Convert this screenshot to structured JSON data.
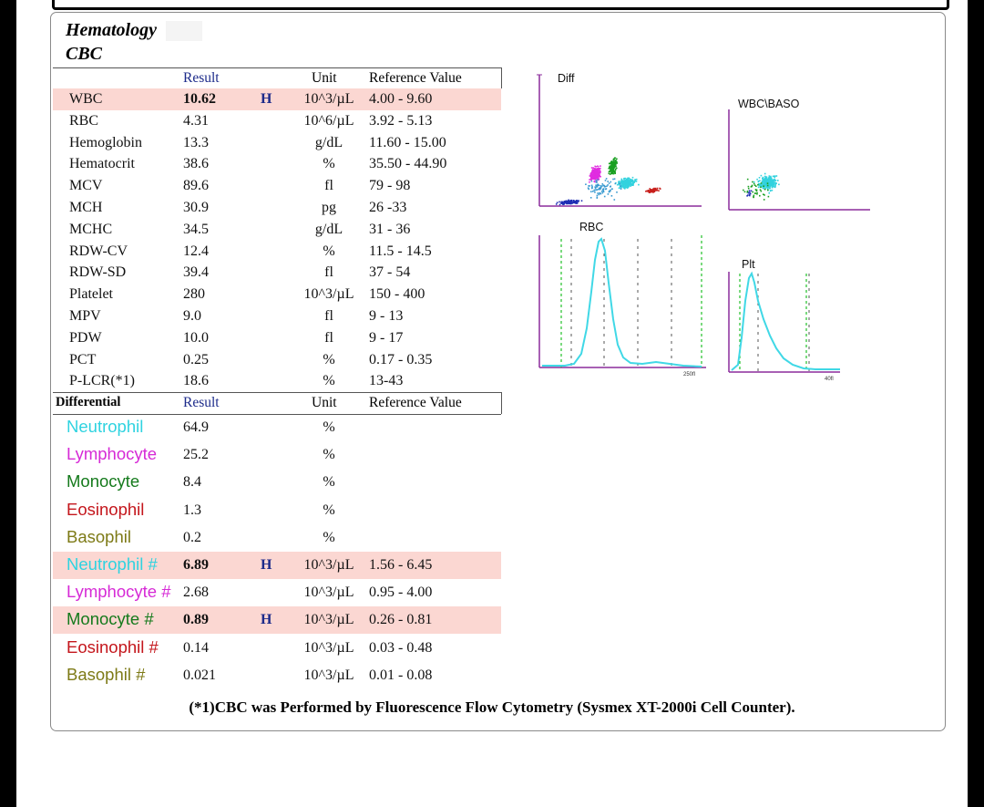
{
  "section_title": "Hematology",
  "sub_title": "CBC",
  "cbc_headers": {
    "result": "Result",
    "unit": "Unit",
    "reference": "Reference Value"
  },
  "cbc_rows": [
    {
      "name": "WBC",
      "result": "10.62",
      "flag": "H",
      "unit": "10^3/µL",
      "ref": "4.00 - 9.60",
      "highlight": true
    },
    {
      "name": "RBC",
      "result": "4.31",
      "flag": "",
      "unit": "10^6/µL",
      "ref": "3.92 - 5.13",
      "highlight": false
    },
    {
      "name": "Hemoglobin",
      "result": "13.3",
      "flag": "",
      "unit": "g/dL",
      "ref": "11.60 - 15.00",
      "highlight": false
    },
    {
      "name": "Hematocrit",
      "result": "38.6",
      "flag": "",
      "unit": "%",
      "ref": "35.50 - 44.90",
      "highlight": false
    },
    {
      "name": "MCV",
      "result": "89.6",
      "flag": "",
      "unit": "fl",
      "ref": "79 - 98",
      "highlight": false
    },
    {
      "name": "MCH",
      "result": "30.9",
      "flag": "",
      "unit": "pg",
      "ref": "26 -33",
      "highlight": false
    },
    {
      "name": "MCHC",
      "result": "34.5",
      "flag": "",
      "unit": "g/dL",
      "ref": "31 - 36",
      "highlight": false
    },
    {
      "name": "RDW-CV",
      "result": "12.4",
      "flag": "",
      "unit": "%",
      "ref": "11.5 - 14.5",
      "highlight": false
    },
    {
      "name": "RDW-SD",
      "result": "39.4",
      "flag": "",
      "unit": "fl",
      "ref": "37 - 54",
      "highlight": false
    },
    {
      "name": "Platelet",
      "result": "280",
      "flag": "",
      "unit": "10^3/µL",
      "ref": "150 - 400",
      "highlight": false
    },
    {
      "name": "MPV",
      "result": "9.0",
      "flag": "",
      "unit": "fl",
      "ref": "9 - 13",
      "highlight": false
    },
    {
      "name": "PDW",
      "result": "10.0",
      "flag": "",
      "unit": "fl",
      "ref": "9 - 17",
      "highlight": false
    },
    {
      "name": "PCT",
      "result": "0.25",
      "flag": "",
      "unit": "%",
      "ref": "0.17 - 0.35",
      "highlight": false
    },
    {
      "name": "P-LCR(*1)",
      "result": "18.6",
      "flag": "",
      "unit": "%",
      "ref": "13-43",
      "highlight": false
    }
  ],
  "diff_headers": {
    "name": "Differential",
    "result": "Result",
    "unit": "Unit",
    "reference": "Reference Value"
  },
  "diff_rows": [
    {
      "name": "Neutrophil",
      "color": "#2fd3e0",
      "result": "64.9",
      "flag": "",
      "unit": "%",
      "ref": "",
      "highlight": false
    },
    {
      "name": "Lymphocyte",
      "color": "#d62ad6",
      "result": "25.2",
      "flag": "",
      "unit": "%",
      "ref": "",
      "highlight": false
    },
    {
      "name": "Monocyte",
      "color": "#157a1c",
      "result": "8.4",
      "flag": "",
      "unit": "%",
      "ref": "",
      "highlight": false
    },
    {
      "name": "Eosinophil",
      "color": "#c4161c",
      "result": "1.3",
      "flag": "",
      "unit": "%",
      "ref": "",
      "highlight": false
    },
    {
      "name": "Basophil",
      "color": "#7d7a16",
      "result": "0.2",
      "flag": "",
      "unit": "%",
      "ref": "",
      "highlight": false
    },
    {
      "name": "Neutrophil #",
      "color": "#2fd3e0",
      "result": "6.89",
      "flag": "H",
      "unit": "10^3/µL",
      "ref": "1.56 - 6.45",
      "highlight": true
    },
    {
      "name": "Lymphocyte #",
      "color": "#d62ad6",
      "result": "2.68",
      "flag": "",
      "unit": "10^3/µL",
      "ref": "0.95 - 4.00",
      "highlight": false
    },
    {
      "name": "Monocyte #",
      "color": "#157a1c",
      "result": "0.89",
      "flag": "H",
      "unit": "10^3/µL",
      "ref": "0.26 - 0.81",
      "highlight": true
    },
    {
      "name": "Eosinophil #",
      "color": "#c4161c",
      "result": "0.14",
      "flag": "",
      "unit": "10^3/µL",
      "ref": "0.03 - 0.48",
      "highlight": false
    },
    {
      "name": "Basophil #",
      "color": "#7d7a16",
      "result": "0.021",
      "flag": "",
      "unit": "10^3/µL",
      "ref": "0.01 - 0.08",
      "highlight": false
    }
  ],
  "charts": {
    "diff_label": "Diff",
    "wbc_baso_label": "WBC\\BASO",
    "rbc_label": "RBC",
    "plt_label": "Plt",
    "rbc_axis_tick": "250fl",
    "plt_axis_tick": "40fl"
  },
  "chart_colors": {
    "axis": "#8b2c9c",
    "curve": "#40d8e6",
    "guide": "#22c02a"
  },
  "footnote": "(*1)CBC was Performed by Fluorescence Flow Cytometry (Sysmex XT-2000i Cell Counter)."
}
